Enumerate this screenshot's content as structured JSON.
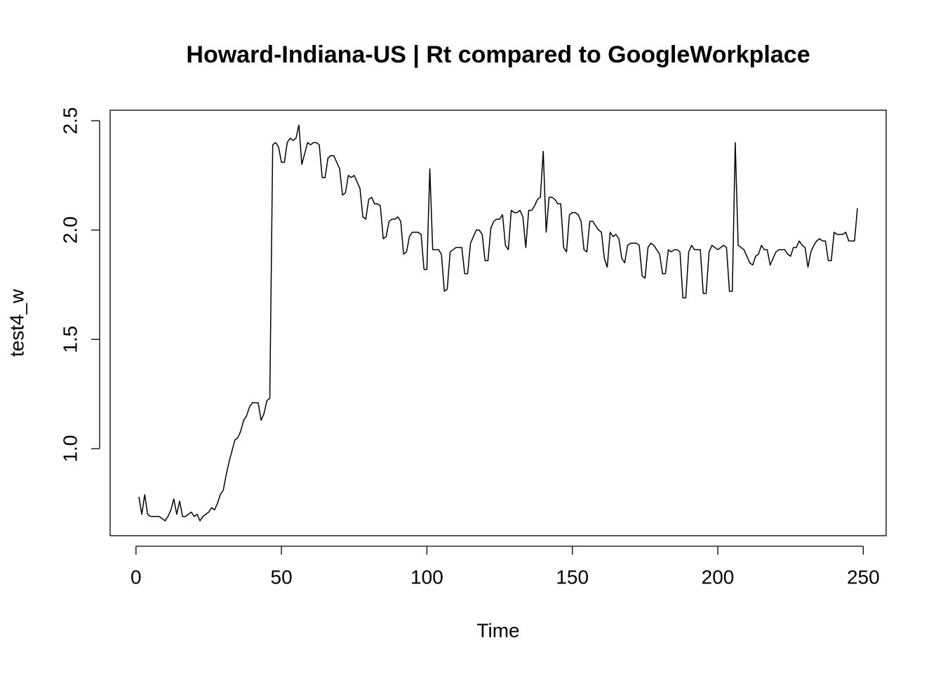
{
  "chart_data": {
    "type": "line",
    "title": "Howard-Indiana-US | Rt compared to GoogleWorkplace",
    "x_label": "Time",
    "y_label": "test4_w",
    "x": [
      1,
      2,
      3,
      4,
      5,
      6,
      7,
      8,
      9,
      10,
      11,
      12,
      13,
      14,
      15,
      16,
      17,
      18,
      19,
      20,
      21,
      22,
      23,
      24,
      25,
      26,
      27,
      28,
      29,
      30,
      31,
      32,
      33,
      34,
      35,
      36,
      37,
      38,
      39,
      40,
      41,
      42,
      43,
      44,
      45,
      46,
      47,
      48,
      49,
      50,
      51,
      52,
      53,
      54,
      55,
      56,
      57,
      58,
      59,
      60,
      61,
      62,
      63,
      64,
      65,
      66,
      67,
      68,
      69,
      70,
      71,
      72,
      73,
      74,
      75,
      76,
      77,
      78,
      79,
      80,
      81,
      82,
      83,
      84,
      85,
      86,
      87,
      88,
      89,
      90,
      91,
      92,
      93,
      94,
      95,
      96,
      97,
      98,
      99,
      100,
      101,
      102,
      103,
      104,
      105,
      106,
      107,
      108,
      109,
      110,
      111,
      112,
      113,
      114,
      115,
      116,
      117,
      118,
      119,
      120,
      121,
      122,
      123,
      124,
      125,
      126,
      127,
      128,
      129,
      130,
      131,
      132,
      133,
      134,
      135,
      136,
      137,
      138,
      139,
      140,
      141,
      142,
      143,
      144,
      145,
      146,
      147,
      148,
      149,
      150,
      151,
      152,
      153,
      154,
      155,
      156,
      157,
      158,
      159,
      160,
      161,
      162,
      163,
      164,
      165,
      166,
      167,
      168,
      169,
      170,
      171,
      172,
      173,
      174,
      175,
      176,
      177,
      178,
      179,
      180,
      181,
      182,
      183,
      184,
      185,
      186,
      187,
      188,
      189,
      190,
      191,
      192,
      193,
      194,
      195,
      196,
      197,
      198,
      199,
      200,
      201,
      202,
      203,
      204,
      205,
      206,
      207,
      208,
      209,
      210,
      211,
      212,
      213,
      214,
      215,
      216,
      217,
      218,
      219,
      220,
      221,
      222,
      223,
      224,
      225,
      226,
      227,
      228,
      229,
      230,
      231,
      232,
      233,
      234,
      235,
      236,
      237,
      238,
      239,
      240,
      241,
      242,
      243,
      244,
      245,
      246,
      247,
      248
    ],
    "series": [
      {
        "color": "#000000",
        "values": [
          0.78,
          0.7,
          0.79,
          0.7,
          0.69,
          0.69,
          0.69,
          0.69,
          0.68,
          0.67,
          0.69,
          0.72,
          0.77,
          0.7,
          0.76,
          0.69,
          0.69,
          0.7,
          0.71,
          0.69,
          0.7,
          0.67,
          0.69,
          0.7,
          0.71,
          0.73,
          0.72,
          0.75,
          0.79,
          0.81,
          0.88,
          0.94,
          0.99,
          1.04,
          1.05,
          1.08,
          1.13,
          1.15,
          1.19,
          1.21,
          1.21,
          1.21,
          1.13,
          1.16,
          1.22,
          1.23,
          2.39,
          2.4,
          2.38,
          2.31,
          2.31,
          2.4,
          2.42,
          2.41,
          2.42,
          2.48,
          2.3,
          2.35,
          2.4,
          2.39,
          2.4,
          2.4,
          2.39,
          2.24,
          2.24,
          2.33,
          2.34,
          2.34,
          2.31,
          2.28,
          2.16,
          2.17,
          2.25,
          2.24,
          2.25,
          2.22,
          2.19,
          2.06,
          2.05,
          2.14,
          2.15,
          2.12,
          2.12,
          2.11,
          1.96,
          1.97,
          2.04,
          2.05,
          2.05,
          2.06,
          2.04,
          1.89,
          1.9,
          1.97,
          1.99,
          1.99,
          1.99,
          1.98,
          1.82,
          1.82,
          2.28,
          1.91,
          1.91,
          1.91,
          1.89,
          1.72,
          1.73,
          1.9,
          1.91,
          1.92,
          1.92,
          1.92,
          1.8,
          1.8,
          1.94,
          1.97,
          2.0,
          2.0,
          1.98,
          1.86,
          1.86,
          2.01,
          2.04,
          2.05,
          2.05,
          2.07,
          1.93,
          1.91,
          2.09,
          2.08,
          2.08,
          2.09,
          2.06,
          1.92,
          2.09,
          2.09,
          2.11,
          2.14,
          2.15,
          2.36,
          1.99,
          2.15,
          2.15,
          2.14,
          2.12,
          2.12,
          1.92,
          1.9,
          2.07,
          2.08,
          2.08,
          2.07,
          2.04,
          1.91,
          1.9,
          2.04,
          2.04,
          2.02,
          2.0,
          1.99,
          1.87,
          1.83,
          1.99,
          1.97,
          1.98,
          1.96,
          1.87,
          1.85,
          1.93,
          1.94,
          1.94,
          1.94,
          1.93,
          1.79,
          1.78,
          1.92,
          1.94,
          1.93,
          1.91,
          1.89,
          1.8,
          1.8,
          1.91,
          1.9,
          1.91,
          1.91,
          1.9,
          1.69,
          1.69,
          1.9,
          1.93,
          1.91,
          1.91,
          1.91,
          1.71,
          1.71,
          1.9,
          1.93,
          1.92,
          1.91,
          1.92,
          1.93,
          1.92,
          1.72,
          1.72,
          2.4,
          1.93,
          1.92,
          1.91,
          1.88,
          1.85,
          1.84,
          1.88,
          1.89,
          1.93,
          1.91,
          1.91,
          1.84,
          1.87,
          1.9,
          1.91,
          1.91,
          1.91,
          1.89,
          1.88,
          1.92,
          1.92,
          1.95,
          1.93,
          1.92,
          1.83,
          1.9,
          1.93,
          1.95,
          1.96,
          1.95,
          1.95,
          1.86,
          1.86,
          1.99,
          1.98,
          1.98,
          1.98,
          1.99,
          1.95,
          1.95,
          1.95,
          2.1
        ]
      }
    ],
    "xlim": [
      -8.88,
      257.88
    ],
    "xticks": [
      0,
      50,
      100,
      150,
      200,
      250
    ],
    "ylim": [
      0.602,
      2.548
    ],
    "yticks": [
      {
        "value": 1,
        "label": "1.0"
      },
      1.5,
      {
        "value": 2,
        "label": "2.0"
      },
      2.5
    ],
    "grid": false
  }
}
